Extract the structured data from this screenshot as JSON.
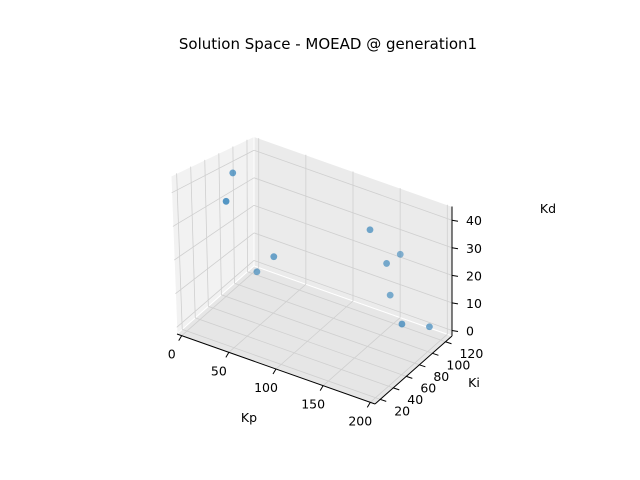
{
  "chart_data": {
    "type": "scatter3d",
    "title": "Solution Space - MOEAD @ generation1",
    "xlabel": "Kp",
    "ylabel": "Ki",
    "zlabel": "Kd",
    "xticks": [
      "0",
      "50",
      "100",
      "150",
      "200"
    ],
    "yticks": [
      "20",
      "40",
      "60",
      "80",
      "100",
      "120"
    ],
    "zticks": [
      "0",
      "10",
      "20",
      "30",
      "40"
    ],
    "xlim": [
      -5,
      205
    ],
    "ylim": [
      12,
      130
    ],
    "zlim": [
      -2,
      45
    ],
    "grid": true,
    "marker_color": "#1f77b4",
    "points": [
      {
        "kp": 2,
        "ki": 90,
        "kd": 38
      },
      {
        "kp": 13,
        "ki": 65,
        "kd": 33
      },
      {
        "kp": 12,
        "ki": 110,
        "kd": 2
      },
      {
        "kp": 43,
        "ki": 92,
        "kd": 14
      },
      {
        "kp": 140,
        "ki": 100,
        "kd": 33
      },
      {
        "kp": 150,
        "ki": 110,
        "kd": 21
      },
      {
        "kp": 150,
        "ki": 115,
        "kd": 9
      },
      {
        "kp": 180,
        "ki": 90,
        "kd": 7
      },
      {
        "kp": 153,
        "ki": 126,
        "kd": 22
      },
      {
        "kp": 200,
        "ki": 103,
        "kd": 6
      }
    ]
  }
}
